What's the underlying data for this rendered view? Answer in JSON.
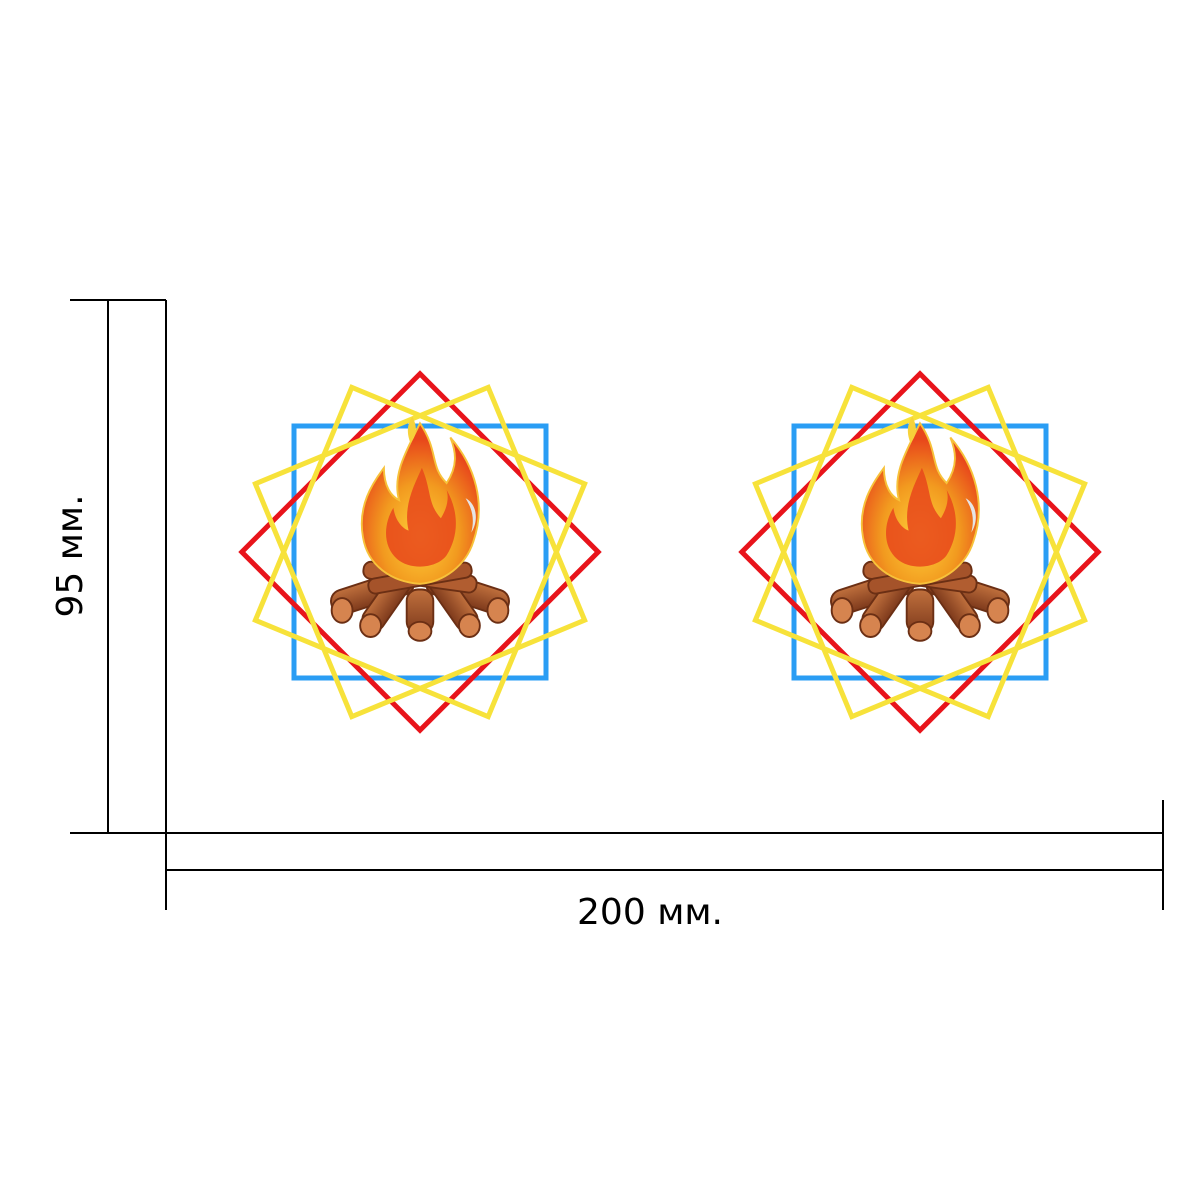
{
  "dimensions": {
    "height_label": "95 мм.",
    "width_label": "200 мм."
  },
  "emblems": [
    {
      "name": "emblem-left",
      "icon": "campfire-icon"
    },
    {
      "name": "emblem-right",
      "icon": "campfire-icon"
    }
  ],
  "colors": {
    "square_blue": "#2a9df4",
    "diamond_red": "#e8141b",
    "rotated_yellow": "#f7e23a",
    "dimension_line": "#000000",
    "flame_outer": "#f29a1f",
    "flame_inner": "#e8471b",
    "log": "#9c4f2a"
  }
}
